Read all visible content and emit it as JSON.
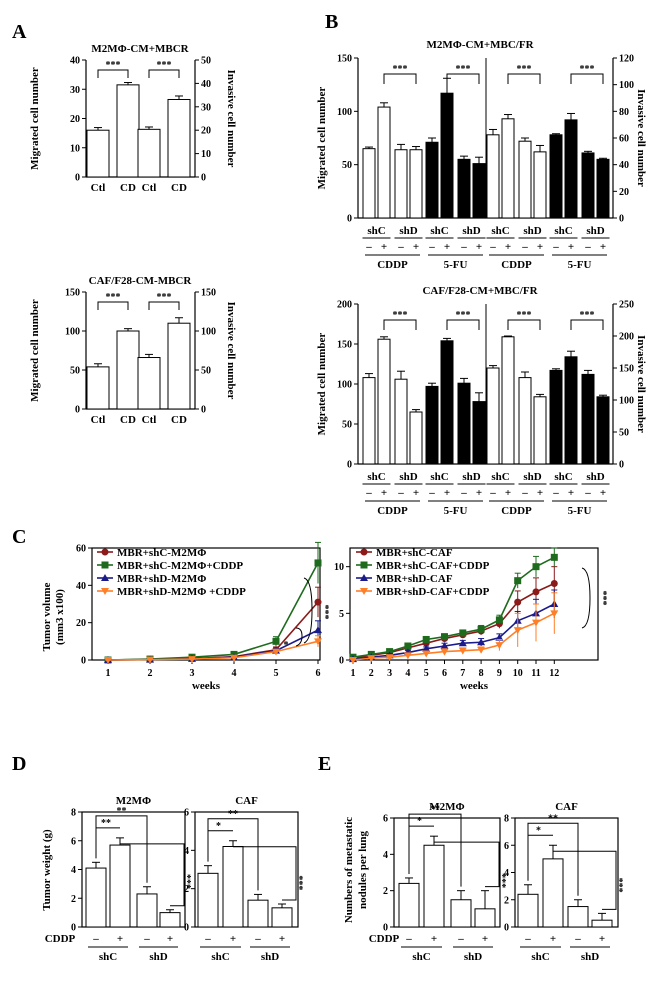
{
  "panel_labels": [
    "A",
    "B",
    "C",
    "D",
    "E"
  ],
  "chart_data": [
    {
      "id": "A1",
      "type": "bar",
      "title": "M2MΦ-CM+MBCR",
      "ylabel": "Migrated cell number",
      "y2label": "Invasive cell number",
      "ylim": [
        0,
        40
      ],
      "yticks": [
        0,
        10,
        20,
        30,
        40
      ],
      "y2lim": [
        0,
        50
      ],
      "y2ticks": [
        0,
        10,
        20,
        30,
        40,
        50
      ],
      "categories": [
        "Ctl",
        "CD",
        "Ctl",
        "CD"
      ],
      "values": [
        16,
        31.5,
        16.3,
        26.5
      ],
      "errors": [
        0.9,
        0.8,
        0.8,
        1.2
      ],
      "fills": [
        "open",
        "open",
        "open",
        "open"
      ],
      "brackets": [
        {
          "from": 0,
          "to": 1,
          "label": "***"
        },
        {
          "from": 2,
          "to": 3,
          "label": "***"
        }
      ]
    },
    {
      "id": "A2",
      "type": "bar",
      "title": "CAF/F28-CM-MBCR",
      "ylabel": "Migrated cell number",
      "y2label": "Invasive cell number",
      "ylim": [
        0,
        150
      ],
      "yticks": [
        0,
        50,
        100,
        150
      ],
      "y2lim": [
        0,
        150
      ],
      "y2ticks": [
        0,
        50,
        100,
        150
      ],
      "categories": [
        "Ctl",
        "CD",
        "Ctl",
        "CD"
      ],
      "values": [
        54,
        100,
        66,
        110
      ],
      "errors": [
        4,
        3,
        4,
        7
      ],
      "fills": [
        "open",
        "open",
        "open",
        "open"
      ],
      "brackets": [
        {
          "from": 0,
          "to": 1,
          "label": "***"
        },
        {
          "from": 2,
          "to": 3,
          "label": "***"
        }
      ]
    },
    {
      "id": "B1",
      "type": "bar",
      "title": "M2MΦ-CM+MBC/FR",
      "ylabel": "Migrated cell number",
      "y2label": "Invasive cell number",
      "ylim": [
        0,
        150
      ],
      "yticks": [
        0,
        50,
        100,
        150
      ],
      "y2lim": [
        0,
        120
      ],
      "y2ticks": [
        0,
        20,
        40,
        60,
        80,
        100,
        120
      ],
      "values": [
        65,
        104,
        64,
        64,
        71,
        117,
        55,
        51,
        78,
        93,
        72,
        62,
        78,
        92,
        61,
        55
      ],
      "errors": [
        1.5,
        4,
        5,
        3,
        4,
        14,
        3,
        6,
        5,
        4,
        3,
        6,
        1,
        6,
        1.5,
        1
      ],
      "fills": [
        "open",
        "open",
        "open",
        "open",
        "solid",
        "solid",
        "solid",
        "solid",
        "open",
        "open",
        "open",
        "open",
        "solid",
        "solid",
        "solid",
        "solid"
      ],
      "brackets": [
        {
          "from": 1,
          "to": 3,
          "label": "***"
        },
        {
          "from": 5,
          "to": 7,
          "label": "***"
        },
        {
          "from": 9,
          "to": 11,
          "label": "***"
        },
        {
          "from": 13,
          "to": 15,
          "label": "***"
        }
      ],
      "sh_labels": [
        "shC",
        "shD",
        "shC",
        "shD",
        "shC",
        "shD",
        "shC",
        "shD"
      ],
      "drug_signs": [
        "–",
        "+",
        "–",
        "+",
        "–",
        "+",
        "–",
        "+",
        "–",
        "+",
        "–",
        "+",
        "–",
        "+",
        "–",
        "+"
      ],
      "drug_labels": [
        "CDDP",
        "5-FU",
        "CDDP",
        "5-FU"
      ]
    },
    {
      "id": "B2",
      "type": "bar",
      "title": "CAF/F28-CM+MBC/FR",
      "ylabel": "Migrated cell number",
      "y2label": "Invasive cell number",
      "ylim": [
        0,
        200
      ],
      "yticks": [
        0,
        50,
        100,
        150,
        200
      ],
      "y2lim": [
        0,
        250
      ],
      "y2ticks": [
        0,
        50,
        100,
        150,
        200,
        250
      ],
      "values": [
        108,
        156,
        106,
        65,
        97,
        154,
        101,
        78,
        120,
        159,
        108,
        84,
        117,
        134,
        112,
        84
      ],
      "errors": [
        5,
        3,
        10,
        3,
        4,
        3,
        6,
        11,
        3,
        1,
        7,
        3,
        2,
        7,
        5,
        2
      ],
      "fills": [
        "open",
        "open",
        "open",
        "open",
        "solid",
        "solid",
        "solid",
        "solid",
        "open",
        "open",
        "open",
        "open",
        "solid",
        "solid",
        "solid",
        "solid"
      ],
      "brackets": [
        {
          "from": 1,
          "to": 3,
          "label": "***"
        },
        {
          "from": 5,
          "to": 7,
          "label": "***"
        },
        {
          "from": 9,
          "to": 11,
          "label": "***"
        },
        {
          "from": 13,
          "to": 15,
          "label": "***"
        }
      ],
      "sh_labels": [
        "shC",
        "shD",
        "shC",
        "shD",
        "shC",
        "shD",
        "shC",
        "shD"
      ],
      "drug_signs": [
        "–",
        "+",
        "–",
        "+",
        "–",
        "+",
        "–",
        "+",
        "–",
        "+",
        "–",
        "+",
        "–",
        "+",
        "–",
        "+"
      ],
      "drug_labels": [
        "CDDP",
        "5-FU",
        "CDDP",
        "5-FU"
      ]
    },
    {
      "id": "C1",
      "type": "line",
      "ylabel": "Tumor volume",
      "ylabel2": "(mm3 x100)",
      "xlabel": "weeks",
      "x": [
        1,
        2,
        3,
        4,
        5,
        6
      ],
      "ylim": [
        0,
        60
      ],
      "yticks": [
        0,
        20,
        40,
        60
      ],
      "series": [
        {
          "name": "MBR+shC-M2MΦ",
          "color": "#8b1a1a",
          "marker": "circle",
          "values": [
            0,
            0.3,
            0.8,
            1.8,
            5.5,
            31
          ],
          "errors": [
            0,
            0.2,
            0.3,
            0.5,
            1.5,
            8
          ]
        },
        {
          "name": "MBR+shC-M2MΦ+CDDP",
          "color": "#1e6b1e",
          "marker": "square",
          "values": [
            0,
            0.5,
            1.5,
            3,
            10,
            52
          ],
          "errors": [
            0,
            0.2,
            0.4,
            0.6,
            2.5,
            11
          ]
        },
        {
          "name": "MBR+shD-M2MΦ",
          "color": "#1a1a8b",
          "marker": "triangle",
          "values": [
            0,
            0.2,
            0.6,
            1.5,
            5,
            16
          ],
          "errors": [
            0,
            0.2,
            0.3,
            0.4,
            1.2,
            5
          ]
        },
        {
          "name": "MBR+shD-M2MΦ +CDDP",
          "color": "#ff7f27",
          "marker": "triangle-down",
          "values": [
            0,
            0.2,
            0.5,
            1.2,
            4.5,
            10
          ],
          "errors": [
            0,
            0.2,
            0.3,
            0.4,
            1,
            3
          ]
        }
      ],
      "annotations": [
        {
          "label": "*"
        },
        {
          "label": "***"
        }
      ]
    },
    {
      "id": "C2",
      "type": "line",
      "xlabel": "weeks",
      "x": [
        1,
        2,
        3,
        4,
        5,
        6,
        7,
        8,
        9,
        10,
        11,
        12
      ],
      "ylim": [
        0,
        12
      ],
      "yticks": [
        0,
        5,
        10
      ],
      "series": [
        {
          "name": "MBR+shC-CAF",
          "color": "#8b1a1a",
          "marker": "circle",
          "values": [
            0.2,
            0.5,
            0.8,
            1.3,
            1.8,
            2.3,
            2.7,
            3.1,
            3.9,
            6.2,
            7.3,
            8.2
          ],
          "errors": [
            0.1,
            0.2,
            0.2,
            0.3,
            0.3,
            0.3,
            0.3,
            0.4,
            0.5,
            1.2,
            1.5,
            1.8
          ]
        },
        {
          "name": "MBR+shC-CAF+CDDP",
          "color": "#1e6b1e",
          "marker": "square",
          "values": [
            0.3,
            0.6,
            0.9,
            1.5,
            2.2,
            2.5,
            2.9,
            3.3,
            4.3,
            8.5,
            10,
            11
          ],
          "errors": [
            0.1,
            0.2,
            0.2,
            0.3,
            0.3,
            0.3,
            0.3,
            0.4,
            0.5,
            0.8,
            1.1,
            1
          ]
        },
        {
          "name": "MBR+shD-CAF",
          "color": "#1a1a8b",
          "marker": "triangle",
          "values": [
            0.1,
            0.3,
            0.5,
            0.8,
            1.2,
            1.5,
            1.8,
            1.9,
            2.4,
            4.2,
            5,
            6
          ],
          "errors": [
            0.1,
            0.2,
            0.2,
            0.2,
            0.2,
            0.3,
            0.3,
            0.4,
            0.4,
            1,
            1.5,
            1.5
          ]
        },
        {
          "name": "MBR+shD-CAF+CDDP",
          "color": "#ff7f27",
          "marker": "triangle-down",
          "values": [
            0,
            0.2,
            0.3,
            0.5,
            0.7,
            0.9,
            1,
            1.1,
            1.6,
            3.2,
            4,
            5
          ],
          "errors": [
            0.1,
            0.1,
            0.2,
            0.2,
            0.2,
            0.3,
            0.3,
            0.3,
            0.6,
            1.8,
            2,
            2.2
          ]
        }
      ],
      "annotations": [
        {
          "label": "***"
        }
      ]
    },
    {
      "id": "D1",
      "type": "bar",
      "title": "M2MΦ",
      "ylabel": "Tumor weight (g)",
      "ylim": [
        0,
        8
      ],
      "yticks": [
        0,
        2,
        4,
        6,
        8
      ],
      "values": [
        4.1,
        5.7,
        2.3,
        1.0
      ],
      "errors": [
        0.4,
        0.5,
        0.5,
        0.2
      ],
      "brackets": [
        {
          "label": "**"
        },
        {
          "label": "**"
        },
        {
          "label": "***"
        }
      ]
    },
    {
      "id": "D2",
      "type": "bar",
      "title": "CAF",
      "ylim": [
        0,
        6
      ],
      "yticks": [
        0,
        2,
        4,
        6
      ],
      "values": [
        2.8,
        4.2,
        1.4,
        1.0
      ],
      "errors": [
        0.4,
        0.3,
        0.3,
        0.2
      ],
      "brackets": [
        {
          "label": "**"
        },
        {
          "label": "*"
        },
        {
          "label": "***"
        }
      ]
    },
    {
      "id": "E1",
      "type": "bar",
      "title": "M2MΦ",
      "ylabel": "Numbers of metastatic",
      "ylabel2": "nodules per lung",
      "ylim": [
        0,
        6
      ],
      "yticks": [
        0,
        2,
        4,
        6
      ],
      "values": [
        2.4,
        4.5,
        1.5,
        1.0
      ],
      "errors": [
        0.3,
        0.5,
        0.5,
        1.0
      ],
      "brackets": [
        {
          "label": "**"
        },
        {
          "label": "*"
        },
        {
          "label": "***"
        }
      ]
    },
    {
      "id": "E2",
      "type": "bar",
      "title": "CAF",
      "ylim": [
        0,
        8
      ],
      "yticks": [
        0,
        2,
        4,
        6,
        8
      ],
      "values": [
        2.4,
        5.0,
        1.5,
        0.5
      ],
      "errors": [
        0.7,
        1.0,
        0.5,
        0.5
      ],
      "brackets": [
        {
          "label": "**"
        },
        {
          "label": "*"
        },
        {
          "label": "***"
        }
      ]
    }
  ],
  "shared": {
    "cddp_label": "CDDP",
    "minus": "–",
    "plus": "+",
    "group_labels": [
      "shC",
      "shD"
    ]
  }
}
